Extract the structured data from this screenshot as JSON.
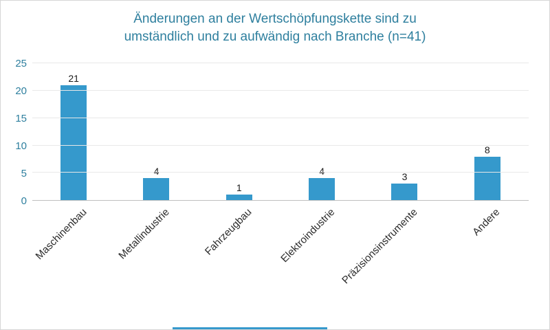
{
  "chart_data": {
    "type": "bar",
    "title": "Änderungen an der Wertschöpfungskette sind zu umständlich und zu aufwändig nach Branche (n=41)",
    "categories": [
      "Maschinenbau",
      "Metallindustrie",
      "Fahrzeugbau",
      "Elektroindustrie",
      "Präzisionsinstrumente",
      "Andere"
    ],
    "values": [
      21,
      4,
      1,
      4,
      3,
      8
    ],
    "data_labels": [
      "21",
      "4",
      "1",
      "4",
      "3",
      "8"
    ],
    "xlabel": "",
    "ylabel": "",
    "ylim": [
      0,
      25
    ],
    "yticks": [
      0,
      5,
      10,
      15,
      20,
      25
    ],
    "grid": true,
    "legend": "none",
    "bar_color": "#3599cc",
    "title_color": "#2e7f9e",
    "tick_label_color": "#2e7f9e",
    "data_label_color": "#1a1a1a"
  }
}
